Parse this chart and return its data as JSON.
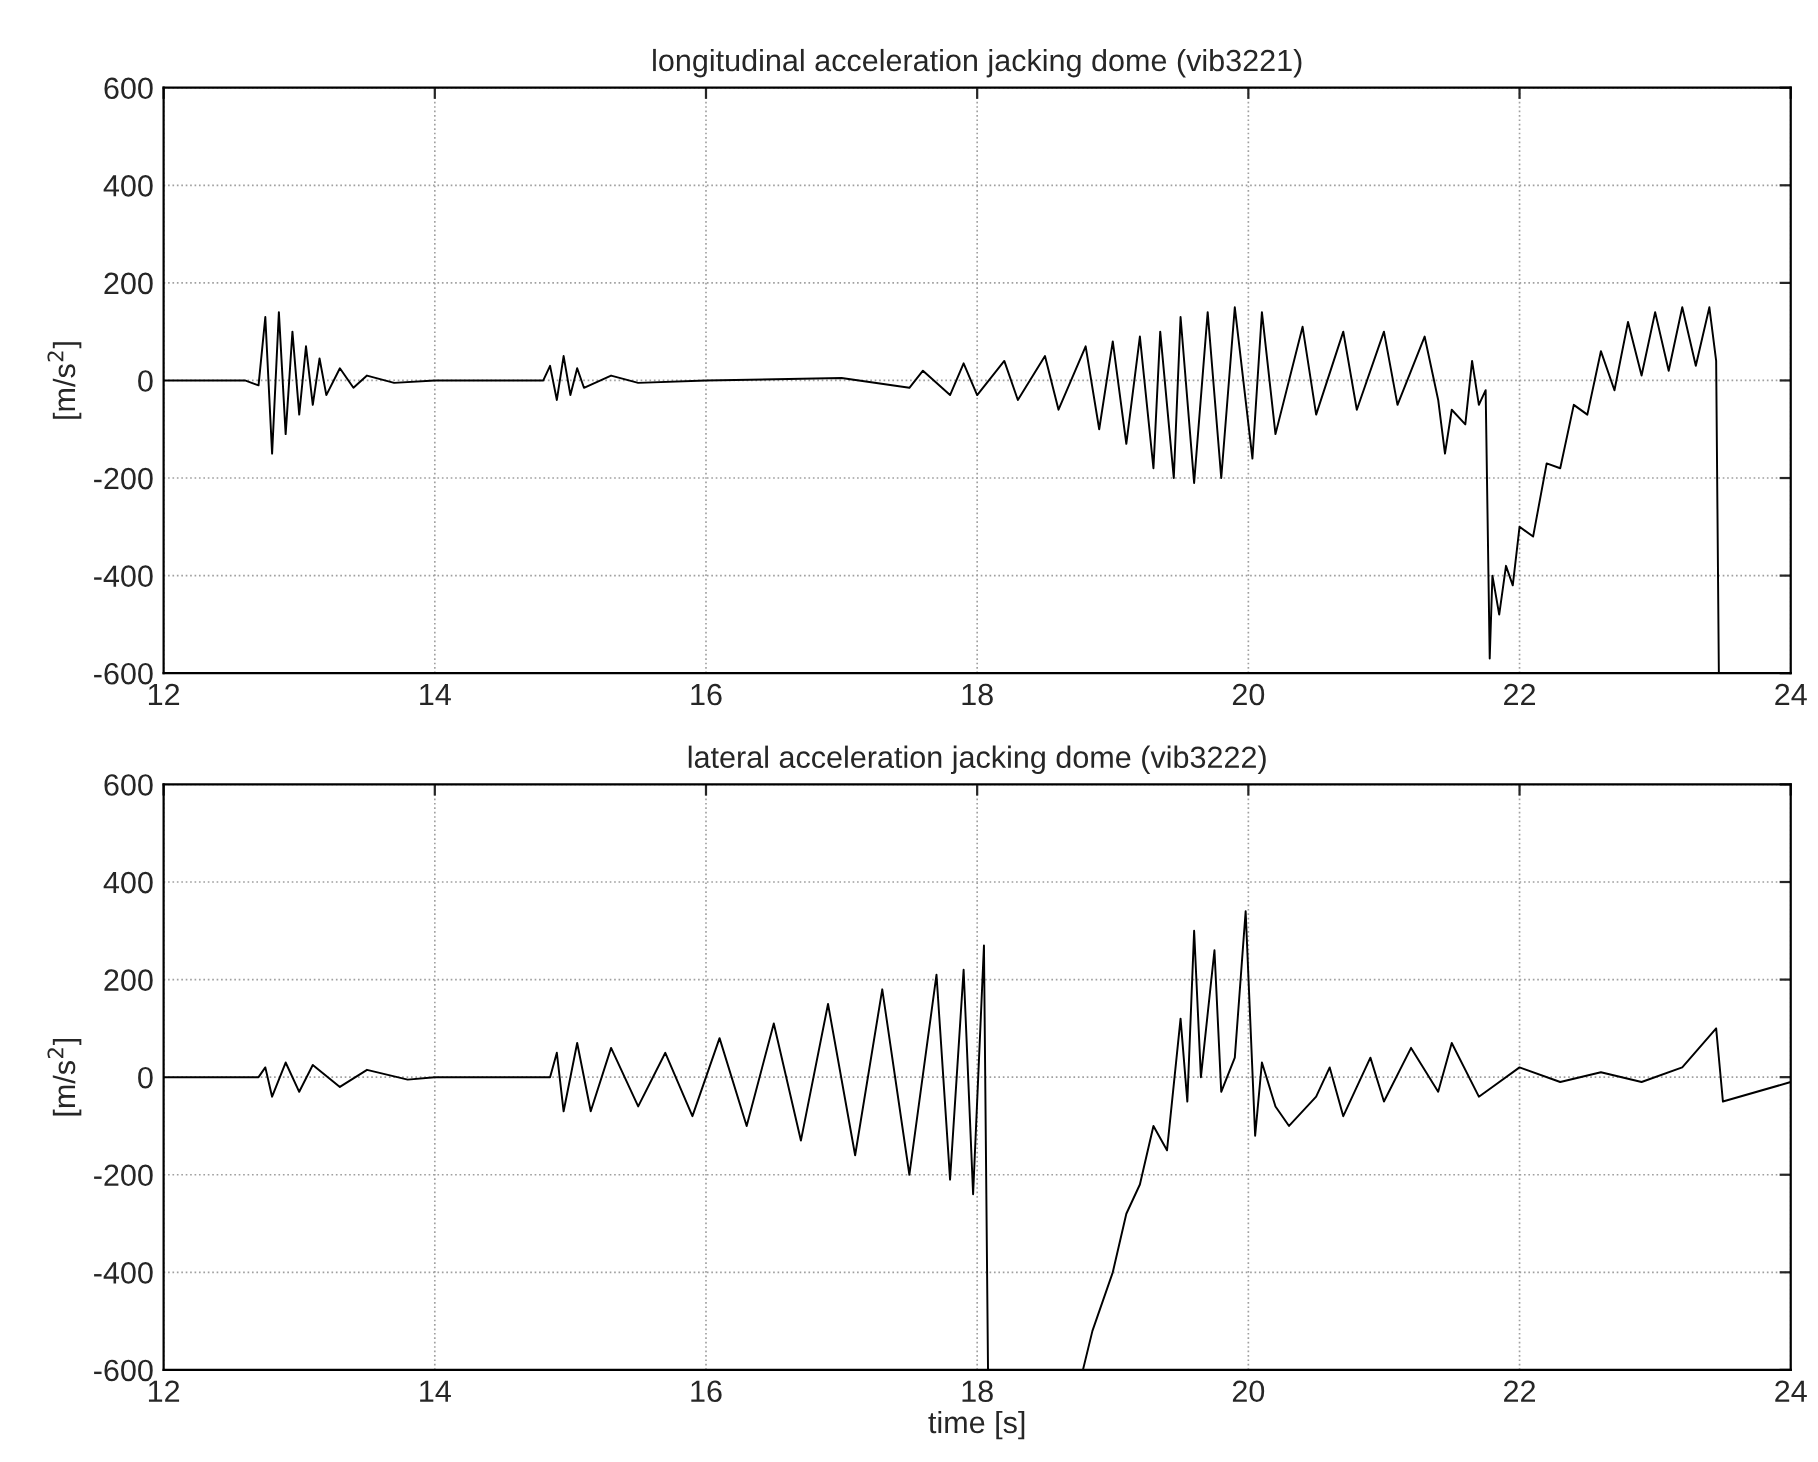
{
  "chart_data": [
    {
      "type": "line",
      "title": "longitudinal acceleration jacking dome (vib3221)",
      "ylabel": "[m/s$^{2}$]",
      "xlim": [
        12,
        24
      ],
      "ylim": [
        -600,
        600
      ],
      "xticks": [
        12,
        14,
        16,
        18,
        20,
        22,
        24
      ],
      "yticks": [
        -600,
        -400,
        -200,
        0,
        200,
        400,
        600
      ],
      "grid": true,
      "legend": false,
      "line_style": "solid",
      "marker": "none",
      "series": [
        {
          "color": "#000000",
          "x": [
            12.0,
            12.6,
            12.7,
            12.75,
            12.8,
            12.85,
            12.9,
            12.95,
            13.0,
            13.05,
            13.1,
            13.15,
            13.2,
            13.3,
            13.4,
            13.5,
            13.7,
            14.0,
            14.8,
            14.85,
            14.9,
            14.95,
            15.0,
            15.05,
            15.1,
            15.3,
            15.5,
            16.0,
            17.0,
            17.5,
            17.6,
            17.8,
            17.9,
            18.0,
            18.2,
            18.3,
            18.5,
            18.6,
            18.8,
            18.9,
            19.0,
            19.1,
            19.2,
            19.3,
            19.35,
            19.45,
            19.5,
            19.6,
            19.7,
            19.8,
            19.9,
            20.03,
            20.1,
            20.2,
            20.4,
            20.5,
            20.7,
            20.8,
            21.0,
            21.1,
            21.3,
            21.4,
            21.45,
            21.5,
            21.6,
            21.65,
            21.7,
            21.75,
            21.78,
            21.8,
            21.85,
            21.9,
            21.95,
            22.0,
            22.1,
            22.2,
            22.3,
            22.4,
            22.5,
            22.6,
            22.7,
            22.8,
            22.9,
            23.0,
            23.1,
            23.2,
            23.3,
            23.4,
            23.45,
            23.47
          ],
          "values": [
            0,
            0,
            -10,
            130,
            -150,
            140,
            -110,
            100,
            -70,
            70,
            -50,
            45,
            -30,
            25,
            -15,
            10,
            -5,
            0,
            0,
            30,
            -40,
            50,
            -30,
            25,
            -15,
            10,
            -5,
            0,
            5,
            -15,
            20,
            -30,
            35,
            -30,
            40,
            -40,
            50,
            -60,
            70,
            -100,
            80,
            -130,
            90,
            -180,
            100,
            -200,
            130,
            -210,
            140,
            -200,
            150,
            -160,
            140,
            -110,
            110,
            -70,
            100,
            -60,
            100,
            -50,
            90,
            -40,
            -150,
            -60,
            -90,
            40,
            -50,
            -20,
            -570,
            -400,
            -480,
            -380,
            -420,
            -300,
            -320,
            -170,
            -180,
            -50,
            -70,
            60,
            -20,
            120,
            10,
            140,
            20,
            150,
            30,
            150,
            40,
            -600
          ]
        }
      ]
    },
    {
      "type": "line",
      "title": "lateral acceleration jacking dome (vib3222)",
      "xlabel": "time [s]",
      "ylabel": "[m/s$^{2}$]",
      "xlim": [
        12,
        24
      ],
      "ylim": [
        -600,
        600
      ],
      "xticks": [
        12,
        14,
        16,
        18,
        20,
        22,
        24
      ],
      "yticks": [
        -600,
        -400,
        -200,
        0,
        200,
        400,
        600
      ],
      "grid": true,
      "legend": false,
      "line_style": "solid",
      "marker": "none",
      "series": [
        {
          "color": "#000000",
          "x": [
            12.0,
            12.7,
            12.75,
            12.8,
            12.9,
            13.0,
            13.1,
            13.3,
            13.5,
            13.8,
            14.0,
            14.85,
            14.9,
            14.95,
            15.05,
            15.15,
            15.3,
            15.5,
            15.7,
            15.9,
            16.1,
            16.3,
            16.5,
            16.7,
            16.9,
            17.1,
            17.3,
            17.5,
            17.7,
            17.8,
            17.9,
            17.97,
            18.05,
            18.08,
            18.4,
            18.78,
            18.85,
            19.0,
            19.1,
            19.2,
            19.3,
            19.4,
            19.5,
            19.55,
            19.6,
            19.65,
            19.75,
            19.8,
            19.9,
            19.98,
            20.05,
            20.1,
            20.2,
            20.3,
            20.5,
            20.6,
            20.7,
            20.9,
            21.0,
            21.2,
            21.4,
            21.5,
            21.7,
            21.8,
            22.0,
            22.3,
            22.6,
            22.9,
            23.2,
            23.45,
            23.5,
            24.0
          ],
          "values": [
            0,
            0,
            20,
            -40,
            30,
            -30,
            25,
            -20,
            15,
            -5,
            0,
            0,
            50,
            -70,
            70,
            -70,
            60,
            -60,
            50,
            -80,
            80,
            -100,
            110,
            -130,
            150,
            -160,
            180,
            -200,
            210,
            -210,
            220,
            -240,
            270,
            -600,
            null,
            -600,
            -520,
            -400,
            -280,
            -220,
            -100,
            -150,
            120,
            -50,
            300,
            0,
            260,
            -30,
            40,
            340,
            -120,
            30,
            -60,
            -100,
            -40,
            20,
            -80,
            40,
            -50,
            60,
            -30,
            70,
            -40,
            -20,
            20,
            -10,
            10,
            -10,
            20,
            100,
            -50,
            -10
          ]
        }
      ]
    }
  ]
}
